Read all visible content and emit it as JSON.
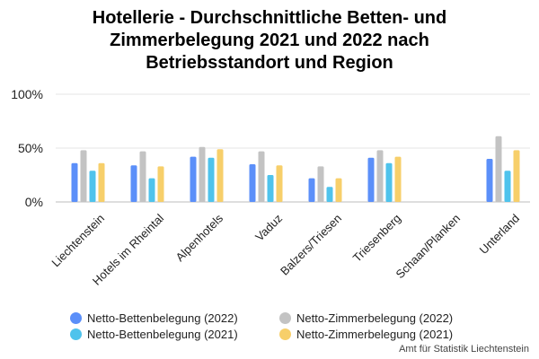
{
  "chart_data": {
    "type": "bar",
    "title_lines": [
      "Hotellerie - Durchschnittliche Betten- und",
      "Zimmerbelegung 2021 und 2022 nach",
      "Betriebsstandort und Region"
    ],
    "categories": [
      "Liechtenstein",
      "Hotels im Rheintal",
      "Alpenhotels",
      "Vaduz",
      "Balzers/Triesen",
      "Triesenberg",
      "Schaan/Planken",
      "Unterland"
    ],
    "y_ticks": [
      {
        "value": 0,
        "label": "0%"
      },
      {
        "value": 50,
        "label": "50%"
      },
      {
        "value": 100,
        "label": "100%"
      }
    ],
    "ylim": [
      0,
      100
    ],
    "grid": true,
    "legend_position": "bottom",
    "series": [
      {
        "name": "Netto-Bettenbelegung (2022)",
        "color": "#5b8ff9",
        "values": [
          36,
          34,
          42,
          35,
          22,
          41,
          null,
          40
        ]
      },
      {
        "name": "Netto-Zimmerbelegung (2022)",
        "color": "#c3c3c3",
        "values": [
          48,
          47,
          51,
          47,
          33,
          48,
          null,
          61
        ]
      },
      {
        "name": "Netto-Bettenbelegung (2021)",
        "color": "#4fc3ec",
        "values": [
          29,
          22,
          41,
          25,
          14,
          36,
          null,
          29
        ]
      },
      {
        "name": "Netto-Zimmerbelegung (2021)",
        "color": "#f7cf6a",
        "values": [
          36,
          33,
          49,
          34,
          22,
          42,
          null,
          48
        ]
      }
    ],
    "legend_order": [
      0,
      1,
      2,
      3
    ],
    "source": "Amt für Statistik Liechtenstein"
  }
}
